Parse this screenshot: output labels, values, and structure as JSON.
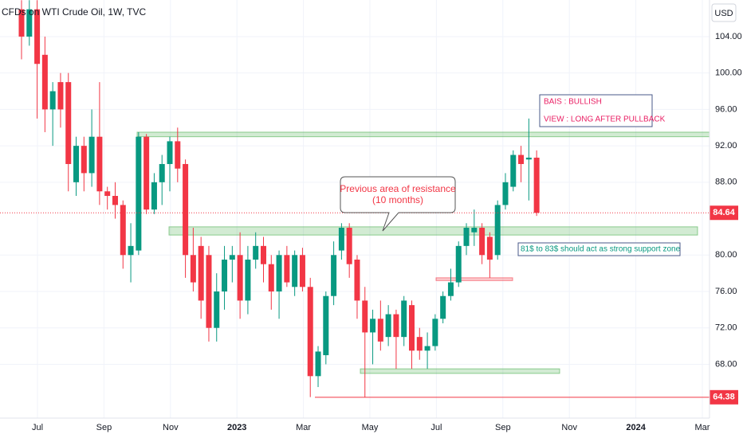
{
  "chart_data": {
    "type": "candlestick",
    "title": "CFDs on WTI Crude Oil, 1W, TVC",
    "currency": "USD",
    "up_color": "#089981",
    "down_color": "#f23645",
    "open": [
      107,
      104,
      107,
      102,
      96,
      99,
      99,
      88,
      92,
      89,
      93,
      87,
      86.5,
      85.5,
      80,
      80.5,
      93,
      85,
      88,
      90,
      92.5,
      90,
      80,
      81,
      80,
      72,
      76,
      79.5,
      80,
      75,
      79.5,
      81,
      79,
      76,
      80,
      76.5,
      80,
      76.5,
      66.7,
      69,
      75.5,
      80.5,
      83,
      79.5,
      75,
      71.5,
      73,
      71,
      73.5,
      71,
      74.5,
      71,
      69.5,
      70,
      73,
      75.5,
      77,
      81,
      82.5,
      83,
      82,
      80,
      85.5,
      87.5,
      91,
      90.5,
      90.7
    ],
    "high": [
      108,
      108,
      108,
      104,
      99,
      100,
      100,
      93,
      93,
      96,
      99,
      87.5,
      88,
      86,
      83.5,
      93.5,
      93.3,
      89,
      91,
      93,
      94,
      90.5,
      83,
      82,
      81,
      78,
      81,
      81,
      82.5,
      81,
      82.5,
      82,
      80,
      80.5,
      81,
      80.5,
      80.8,
      77.5,
      70,
      76,
      81.5,
      83.5,
      83.5,
      80,
      76.5,
      74,
      75,
      74.5,
      74,
      75.5,
      75,
      72,
      71.5,
      73.5,
      76,
      78.5,
      81.5,
      83.5,
      85,
      83.5,
      82.5,
      86,
      89,
      91.5,
      92,
      95,
      91.5
    ],
    "low": [
      101.5,
      103,
      95,
      93.5,
      92,
      94,
      87,
      86.5,
      87,
      87.5,
      85.5,
      85,
      84,
      78.5,
      77,
      80,
      84.5,
      84.5,
      85.5,
      87,
      88,
      77.5,
      76,
      73,
      70.5,
      70.5,
      74,
      77,
      73,
      73.5,
      78.5,
      77,
      74,
      73,
      76.5,
      75.5,
      76,
      64.4,
      65.5,
      68,
      74.5,
      79.5,
      77.5,
      73,
      64.4,
      68,
      69.5,
      70,
      67.5,
      70,
      67.5,
      68.5,
      67.5,
      69.5,
      72.5,
      75,
      76.5,
      80,
      81,
      79,
      77.5,
      79.5,
      85,
      87,
      88,
      86,
      84.3
    ],
    "close": [
      104,
      107,
      101,
      96,
      98,
      96,
      90,
      92,
      89,
      93,
      87,
      86.5,
      85.5,
      80,
      81,
      93,
      85,
      88,
      90,
      92.5,
      89.5,
      80,
      77,
      75,
      72,
      76,
      79.5,
      80,
      75,
      79.5,
      81,
      79,
      76,
      80,
      77,
      80,
      76.5,
      66.7,
      69.4,
      75.5,
      80,
      83,
      79,
      75,
      71.5,
      73,
      70.5,
      73.5,
      71,
      75,
      69.5,
      69.5,
      70,
      73,
      75.5,
      77,
      81,
      83,
      83,
      80,
      79.5,
      85.5,
      88,
      91,
      90,
      90.7,
      84.64
    ],
    "ylim": [
      62.09,
      108.02
    ],
    "yticks": [
      {
        "value": 68,
        "label": "68.00"
      },
      {
        "value": 72,
        "label": "72.00"
      },
      {
        "value": 76,
        "label": "76.00"
      },
      {
        "value": 80,
        "label": "80.00"
      },
      {
        "value": 88,
        "label": "88.00"
      },
      {
        "value": 92,
        "label": "92.00"
      },
      {
        "value": 96,
        "label": "96.00"
      },
      {
        "value": 100,
        "label": "100.00"
      },
      {
        "value": 104,
        "label": "104.00"
      }
    ],
    "xticks": [
      "Jul",
      "Sep",
      "Nov",
      "2023",
      "Mar",
      "May",
      "Jul",
      "Sep",
      "Nov",
      "2024",
      "Mar"
    ],
    "price_lines": [
      84.64,
      64.38
    ],
    "zones": [
      {
        "low": 93.0,
        "high": 93.5,
        "color": "#4caf50"
      },
      {
        "low": 82.2,
        "high": 83.1,
        "color": "#4caf50"
      },
      {
        "low": 77.2,
        "high": 77.5,
        "color": "#f23645"
      },
      {
        "low": 67.0,
        "high": 67.5,
        "color": "#4caf50"
      }
    ],
    "annotations": {
      "resistance": [
        "Previous area of resistance",
        "(10 months)"
      ],
      "bias": [
        "BAIS : BULLISH",
        "VIEW : LONG AFTER PULLBACK"
      ],
      "support": "81$ to 83$ should act as strong support zone"
    }
  }
}
